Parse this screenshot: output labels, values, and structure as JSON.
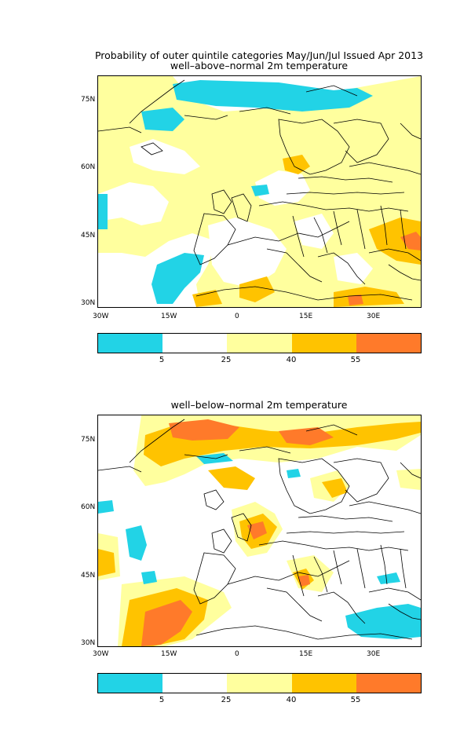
{
  "header": {
    "line1": "Probability of outer quintile categories May/Jun/Jul Issued Apr 2013"
  },
  "panels": [
    {
      "subtitle": "well–above–normal 2m temperature",
      "lat_labels": [
        "75N",
        "60N",
        "45N",
        "30N"
      ],
      "lon_labels": [
        "30W",
        "15W",
        "0",
        "15E",
        "30E"
      ]
    },
    {
      "subtitle": "well–below–normal 2m temperature",
      "lat_labels": [
        "75N",
        "60N",
        "45N",
        "30N"
      ],
      "lon_labels": [
        "30W",
        "15W",
        "0",
        "15E",
        "30E"
      ]
    }
  ],
  "colorbar": {
    "colors": [
      "#22d3e6",
      "#ffffff",
      "#ffff9e",
      "#ffc300",
      "#ff7a2a"
    ],
    "labels": [
      "5",
      "25",
      "40",
      "55"
    ]
  },
  "map_extent": {
    "lon": [
      -30,
      40
    ],
    "lat": [
      29,
      80
    ]
  }
}
